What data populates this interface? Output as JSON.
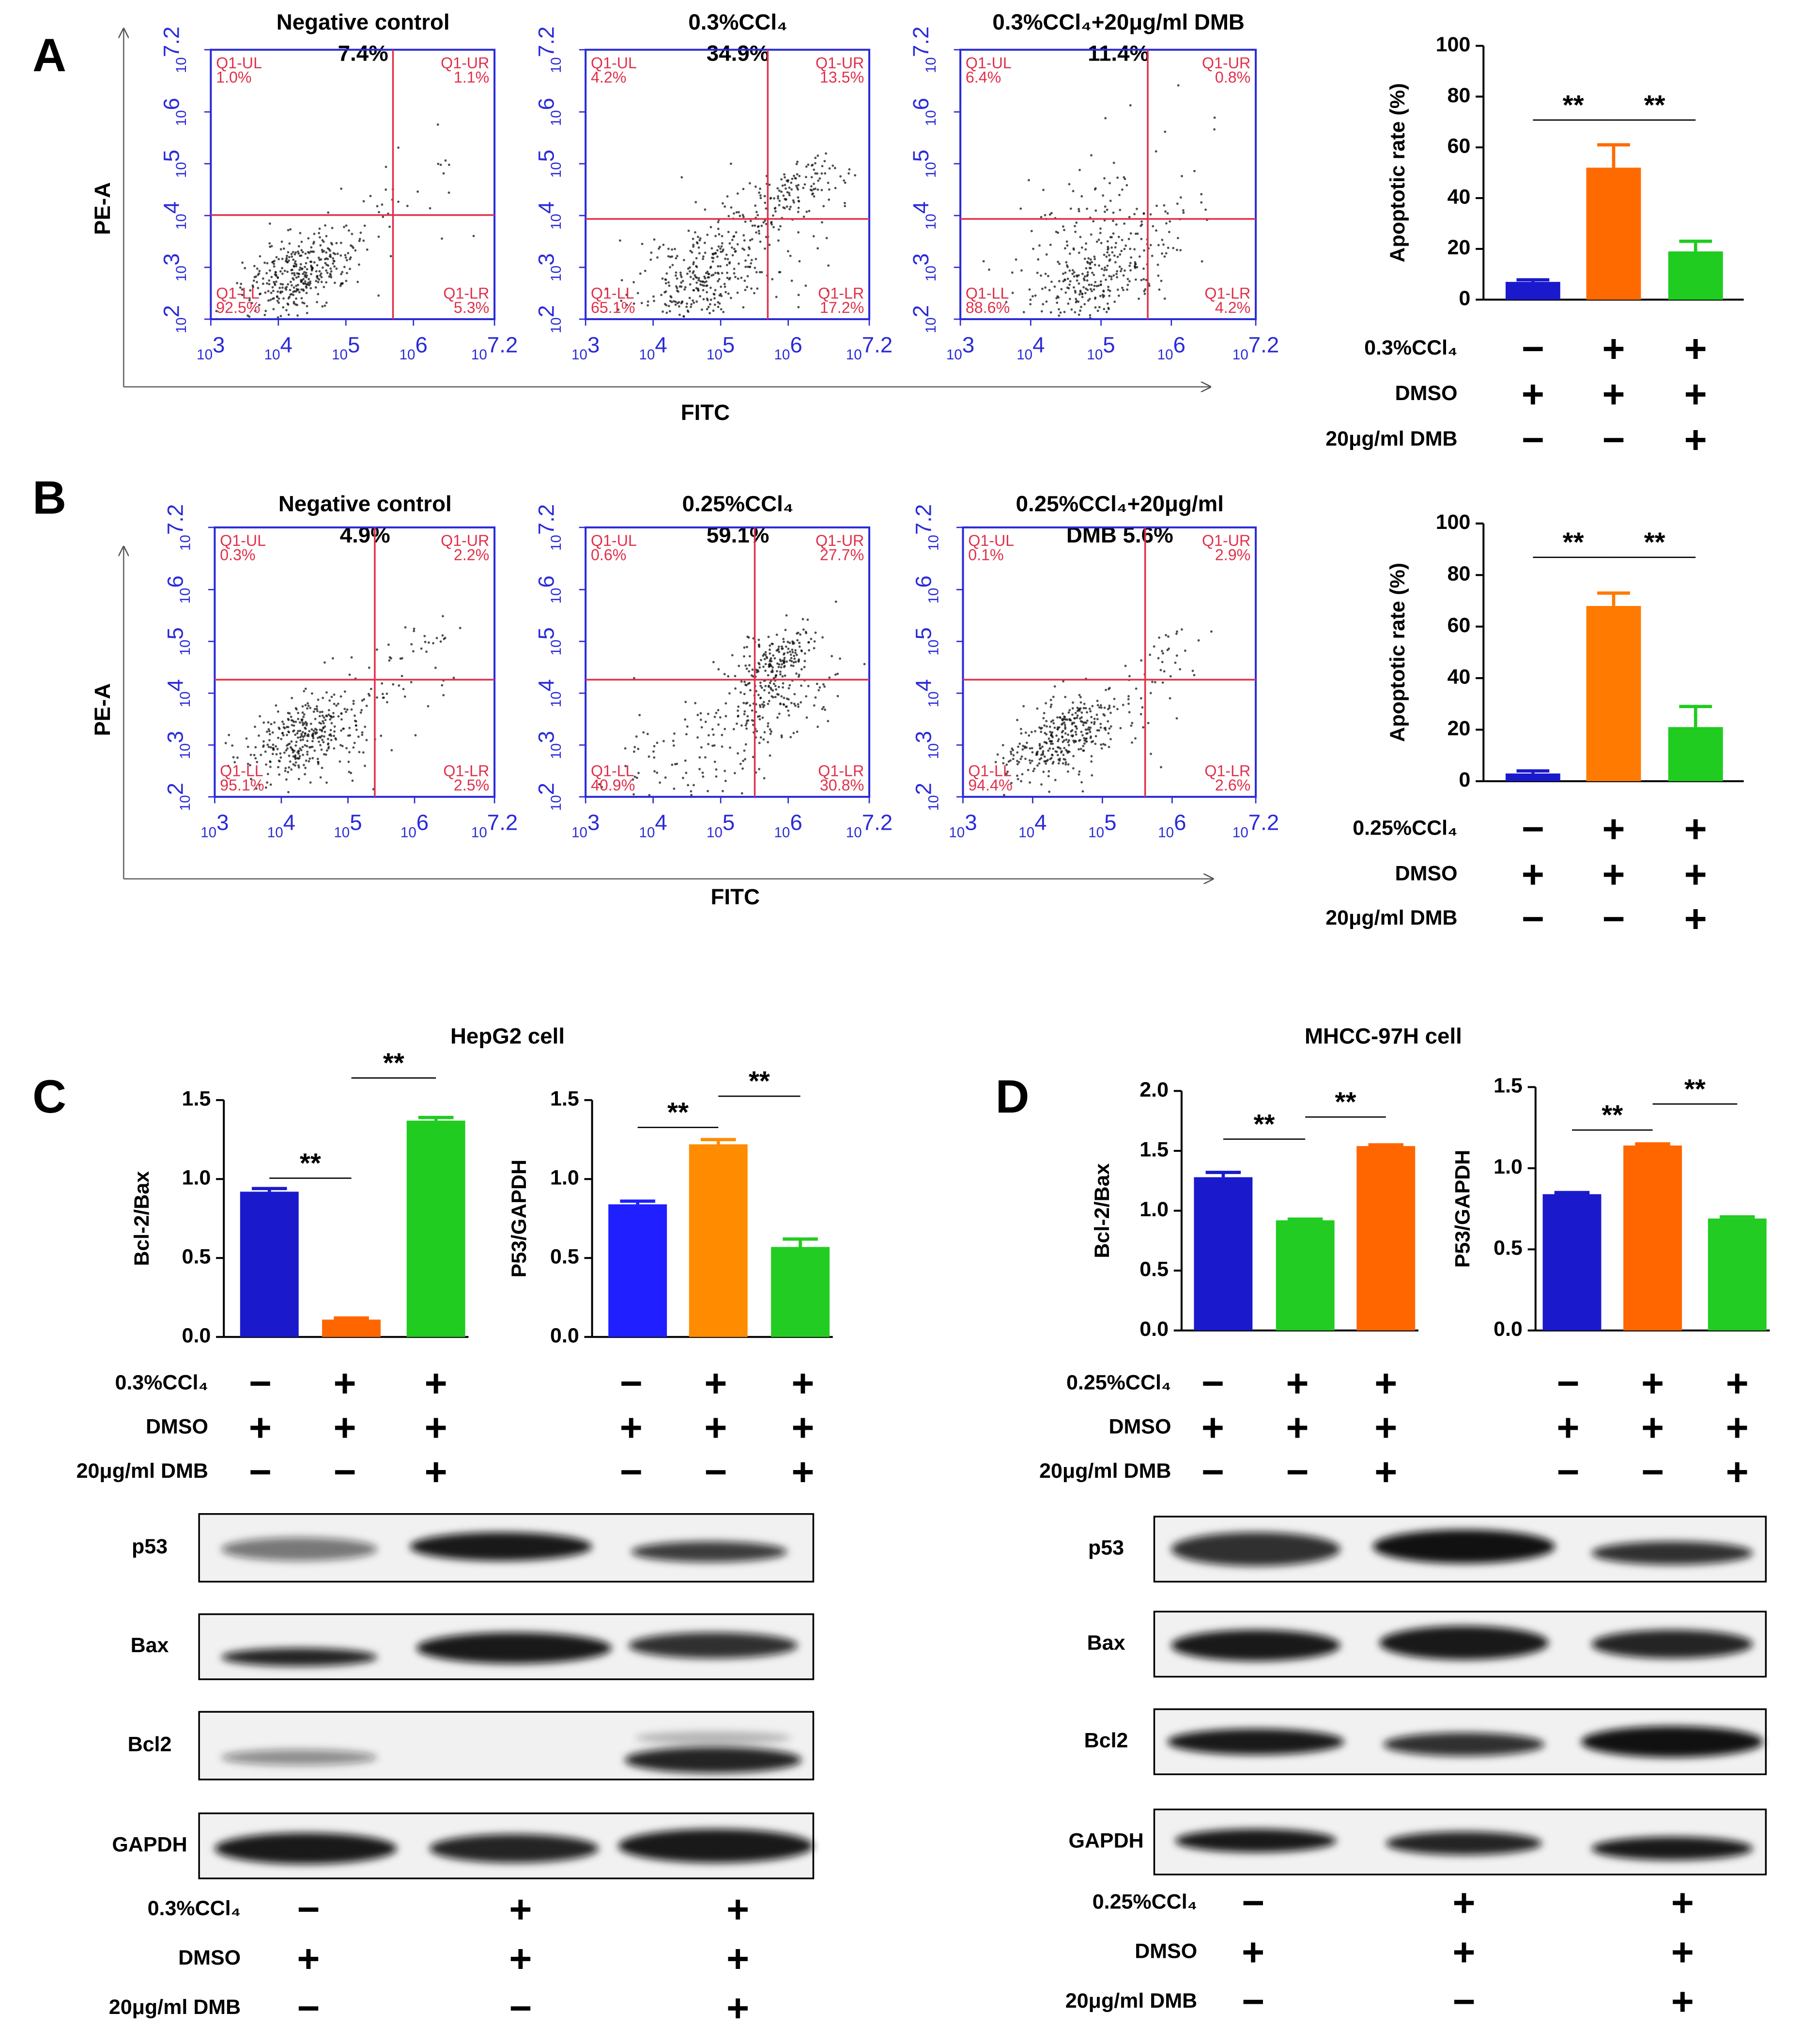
{
  "panel_labels": [
    "A",
    "B",
    "C",
    "D"
  ],
  "flow": {
    "y_label": "PE-A",
    "x_label": "FITC",
    "tick_base": "10",
    "x_ticks": [
      3,
      4,
      5,
      6,
      7.2
    ],
    "y_ticks": [
      2,
      3,
      4,
      5,
      6,
      7.2
    ],
    "quadrant_names": [
      "Q1-UL",
      "Q1-UR",
      "Q1-LL",
      "Q1-LR"
    ],
    "rows": [
      {
        "plots": [
          {
            "title": [
              "Negative control",
              "7.4%"
            ],
            "quadrants": [
              "1.0%",
              "1.1%",
              "92.5%",
              "5.3%"
            ]
          },
          {
            "title": [
              "0.3%CCl₄",
              "34.9%"
            ],
            "quadrants": [
              "4.2%",
              "13.5%",
              "65.1%",
              "17.2%"
            ]
          },
          {
            "title": [
              "0.3%CCl₄+20μg/ml  DMB",
              "11.4%"
            ],
            "quadrants": [
              "6.4%",
              "0.8%",
              "88.6%",
              "4.2%"
            ]
          }
        ]
      },
      {
        "plots": [
          {
            "title": [
              "Negative control",
              "4.9%"
            ],
            "quadrants": [
              "0.3%",
              "2.2%",
              "95.1%",
              "2.5%"
            ]
          },
          {
            "title": [
              "0.25%CCl₄",
              "59.1%"
            ],
            "quadrants": [
              "0.6%",
              "27.7%",
              "40.9%",
              "30.8%"
            ]
          },
          {
            "title": [
              "0.25%CCl₄+20μg/ml",
              "DMB    5.6%"
            ],
            "quadrants": [
              "0.1%",
              "2.9%",
              "94.4%",
              "2.6%"
            ]
          }
        ]
      }
    ]
  },
  "sections": [
    "HepG2 cell",
    "MHCC-97H cell"
  ],
  "chart_data": [
    {
      "type": "bar",
      "ylabel": "Apoptotic rate  (%)",
      "values": [
        7,
        52,
        19
      ],
      "errors": [
        0.8,
        9,
        4
      ],
      "colors": [
        "#1a1acc",
        "#ff6a00",
        "#1fcc1f"
      ],
      "ylim": [
        0,
        100
      ],
      "yticks": [
        0,
        20,
        40,
        60,
        80,
        100
      ],
      "annotations": [
        "**",
        "**"
      ]
    },
    {
      "type": "bar",
      "ylabel": "Apoptotic rate  (%)",
      "values": [
        3,
        68,
        21
      ],
      "errors": [
        1,
        5,
        8
      ],
      "colors": [
        "#1a1acc",
        "#ff7a00",
        "#1fcc1f"
      ],
      "ylim": [
        0,
        100
      ],
      "yticks": [
        0,
        20,
        40,
        60,
        80,
        100
      ],
      "annotations": [
        "**",
        "**"
      ]
    },
    {
      "type": "bar",
      "ylabel": "Bcl-2/Bax",
      "values": [
        0.92,
        0.11,
        1.37
      ],
      "errors": [
        0.02,
        0.01,
        0.02
      ],
      "colors": [
        "#1a1acc",
        "#ff6600",
        "#1fcc1f"
      ],
      "ylim": [
        0,
        1.5
      ],
      "yticks": [
        {
          "value": 0,
          "label": "0.0"
        },
        0.5,
        {
          "value": 1,
          "label": "1.0"
        },
        1.5
      ],
      "annotations": [
        "**",
        "**"
      ]
    },
    {
      "type": "bar",
      "ylabel": "P53/GAPDH",
      "values": [
        0.84,
        1.22,
        0.57
      ],
      "errors": [
        0.02,
        0.03,
        0.05
      ],
      "colors": [
        "#1f1fff",
        "#ff8c00",
        "#22cc22"
      ],
      "ylim": [
        0,
        1.5
      ],
      "yticks": [
        {
          "value": 0,
          "label": "0.0"
        },
        0.5,
        {
          "value": 1,
          "label": "1.0"
        },
        1.5
      ],
      "annotations": [
        "**",
        "**"
      ]
    },
    {
      "type": "bar",
      "ylabel": "Bcl-2/Bax",
      "values": [
        1.28,
        0.92,
        1.54
      ],
      "errors": [
        0.04,
        0.01,
        0.01
      ],
      "colors": [
        "#1a1acc",
        "#22cc22",
        "#ff6600"
      ],
      "ylim": [
        0,
        2
      ],
      "yticks": [
        {
          "value": 0,
          "label": "0.0"
        },
        0.5,
        {
          "value": 1,
          "label": "1.0"
        },
        1.5,
        {
          "value": 2,
          "label": "2.0"
        }
      ],
      "annotations": [
        "**",
        "**"
      ]
    },
    {
      "type": "bar",
      "ylabel": "P53/GAPDH",
      "values": [
        0.84,
        1.14,
        0.69
      ],
      "errors": [
        0.01,
        0.01,
        0.01
      ],
      "colors": [
        "#1a1acc",
        "#ff6600",
        "#22cc22"
      ],
      "ylim": [
        0,
        1.5
      ],
      "yticks": [
        {
          "value": 0,
          "label": "0.0"
        },
        0.5,
        {
          "value": 1,
          "label": "1.0"
        },
        1.5
      ],
      "annotations": [
        "**",
        "**"
      ]
    }
  ],
  "treatment_tables": [
    {
      "rows": [
        {
          "label": "0.3%CCl₄",
          "signs": [
            "−",
            "+",
            "+"
          ]
        },
        {
          "label": "DMSO",
          "signs": [
            "+",
            "+",
            "+"
          ]
        },
        {
          "label": "20μg/ml DMB",
          "signs": [
            "−",
            "−",
            "+"
          ]
        }
      ]
    },
    {
      "rows": [
        {
          "label": "0.25%CCl₄",
          "signs": [
            "−",
            "+",
            "+"
          ]
        },
        {
          "label": "DMSO",
          "signs": [
            "+",
            "+",
            "+"
          ]
        },
        {
          "label": "20μg/ml DMB",
          "signs": [
            "−",
            "−",
            "+"
          ]
        }
      ]
    },
    {
      "rows": [
        {
          "label": "0.3%CCl₄",
          "signs": [
            "−",
            "+",
            "+",
            "−",
            "+",
            "+"
          ]
        },
        {
          "label": "DMSO",
          "signs": [
            "+",
            "+",
            "+",
            "+",
            "+",
            "+"
          ]
        },
        {
          "label": "20μg/ml DMB",
          "signs": [
            "−",
            "−",
            "+",
            "−",
            "−",
            "+"
          ]
        }
      ]
    },
    {
      "rows": [
        {
          "label": "0.25%CCl₄",
          "signs": [
            "−",
            "+",
            "+",
            "−",
            "+",
            "+"
          ]
        },
        {
          "label": "DMSO",
          "signs": [
            "+",
            "+",
            "+",
            "+",
            "+",
            "+"
          ]
        },
        {
          "label": "20μg/ml DMB",
          "signs": [
            "−",
            "−",
            "+",
            "−",
            "−",
            "+"
          ]
        }
      ]
    },
    {
      "rows": [
        {
          "label": "0.3%CCl₄",
          "signs": [
            "−",
            "+",
            "+"
          ]
        },
        {
          "label": "DMSO",
          "signs": [
            "+",
            "+",
            "+"
          ]
        },
        {
          "label": "20μg/ml DMB",
          "signs": [
            "−",
            "−",
            "+"
          ]
        }
      ]
    },
    {
      "rows": [
        {
          "label": "0.25%CCl₄",
          "signs": [
            "−",
            "+",
            "+"
          ]
        },
        {
          "label": "DMSO",
          "signs": [
            "+",
            "+",
            "+"
          ]
        },
        {
          "label": "20μg/ml DMB",
          "signs": [
            "−",
            "−",
            "+"
          ]
        }
      ]
    }
  ],
  "blots": {
    "labels": [
      "p53",
      "Bax",
      "Bcl2",
      "GAPDH"
    ]
  }
}
